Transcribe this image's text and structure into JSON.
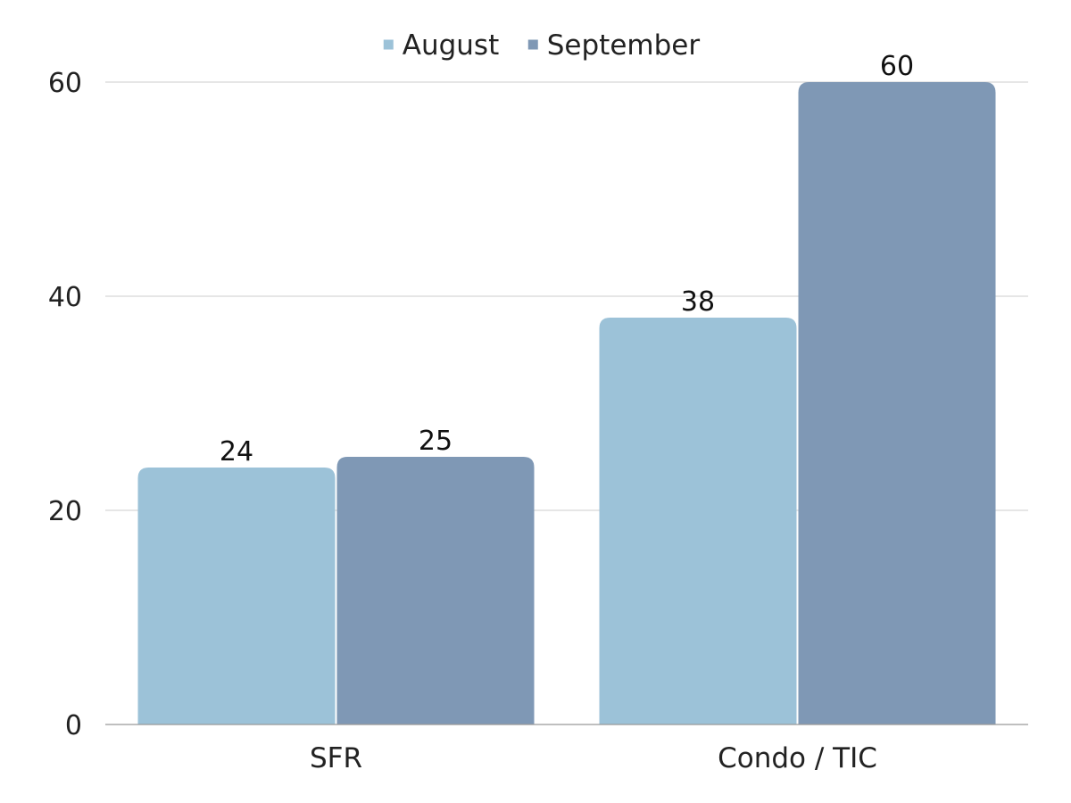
{
  "chart_data": {
    "type": "bar",
    "categories": [
      "SFR",
      "Condo / TIC"
    ],
    "series": [
      {
        "name": "August",
        "values": [
          24,
          38
        ],
        "color": "#9cc2d8"
      },
      {
        "name": "September",
        "values": [
          25,
          60
        ],
        "color": "#7f98b5"
      }
    ],
    "title": "",
    "xlabel": "",
    "ylabel": "",
    "ylim": [
      0,
      60
    ],
    "yticks": [
      0,
      20,
      40,
      60
    ],
    "grid": true,
    "legend_position": "top-center",
    "data_labels": true
  }
}
